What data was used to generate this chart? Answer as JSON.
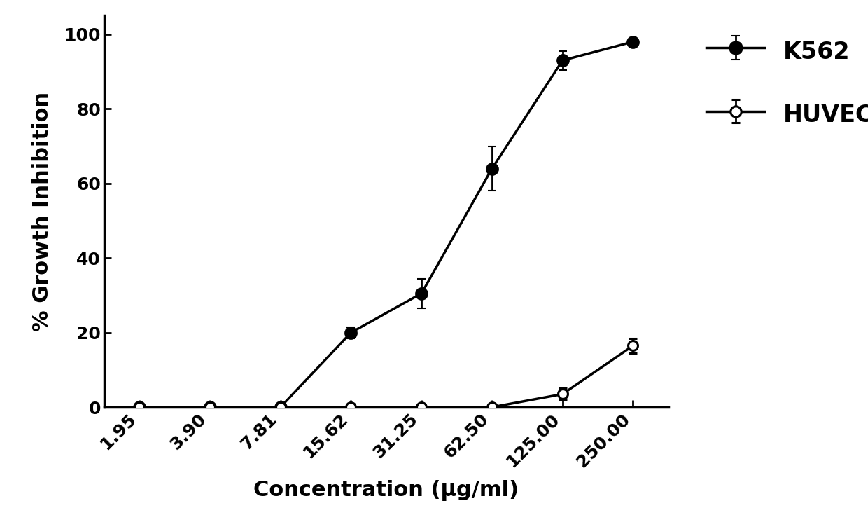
{
  "x_labels": [
    "1.95",
    "3.90",
    "7.81",
    "15.62",
    "31.25",
    "62.50",
    "125.00",
    "250.00"
  ],
  "x_positions": [
    1,
    2,
    3,
    4,
    5,
    6,
    7,
    8
  ],
  "k562_y": [
    0.0,
    0.0,
    0.0,
    20.0,
    30.5,
    64.0,
    93.0,
    98.0
  ],
  "k562_yerr": [
    0.5,
    0.5,
    0.5,
    1.5,
    4.0,
    6.0,
    2.5,
    1.0
  ],
  "huvecs_y": [
    0.0,
    0.0,
    0.0,
    0.0,
    0.0,
    0.0,
    3.5,
    16.5
  ],
  "huvecs_yerr": [
    0.3,
    0.3,
    0.3,
    0.5,
    0.5,
    0.8,
    1.5,
    2.0
  ],
  "ylabel": "% Growth Inhibition",
  "xlabel": "Concentration (μg/ml)",
  "ylim": [
    0,
    105
  ],
  "yticks": [
    0,
    20,
    40,
    60,
    80,
    100
  ],
  "line_color": "#000000",
  "linewidth": 2.5,
  "capsize": 4,
  "legend_k562": "K562",
  "legend_huvecs": "HUVECs",
  "label_fontsize": 22,
  "tick_fontsize": 18,
  "legend_fontsize": 24,
  "background_color": "#ffffff"
}
